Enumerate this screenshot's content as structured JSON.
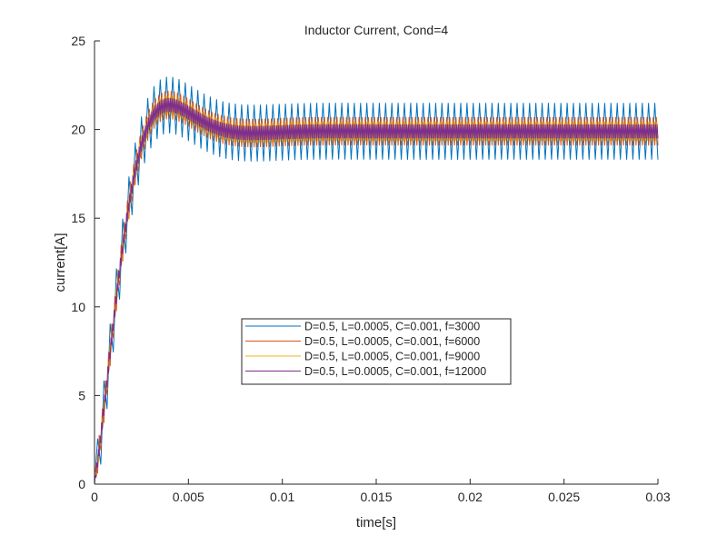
{
  "chart_data": {
    "type": "line",
    "title": "Inductor Current, Cond=4",
    "xlabel": "time[s]",
    "ylabel": "current[A]",
    "xlim": [
      0,
      0.03
    ],
    "ylim": [
      0,
      25
    ],
    "xticks": [
      0,
      0.005,
      0.01,
      0.015,
      0.02,
      0.025,
      0.03
    ],
    "xtick_labels": [
      "0",
      "0.005",
      "0.01",
      "0.015",
      "0.02",
      "0.025",
      "0.03"
    ],
    "yticks": [
      0,
      5,
      10,
      15,
      20,
      25
    ],
    "ytick_labels": [
      "0",
      "5",
      "10",
      "15",
      "20",
      "25"
    ],
    "grid": false,
    "legend_position": "center",
    "steady_state_mean": 19.9,
    "peak_mean": 21.3,
    "peak_time": 0.0047,
    "series": [
      {
        "name": "D=0.5, L=0.0005, C=0.001, f=3000",
        "D": 0.5,
        "L": 0.0005,
        "C": 0.001,
        "f": 3000,
        "ripple_pp": 3.2,
        "color": "#0072BD"
      },
      {
        "name": "D=0.5, L=0.0005, C=0.001, f=6000",
        "D": 0.5,
        "L": 0.0005,
        "C": 0.001,
        "f": 6000,
        "ripple_pp": 1.6,
        "color": "#D95319"
      },
      {
        "name": "D=0.5, L=0.0005, C=0.001, f=9000",
        "D": 0.5,
        "L": 0.0005,
        "C": 0.001,
        "f": 9000,
        "ripple_pp": 1.07,
        "color": "#EDB120"
      },
      {
        "name": "D=0.5, L=0.0005, C=0.001, f=12000",
        "D": 0.5,
        "L": 0.0005,
        "C": 0.001,
        "f": 12000,
        "ripple_pp": 0.8,
        "color": "#7E2F8E"
      }
    ]
  }
}
